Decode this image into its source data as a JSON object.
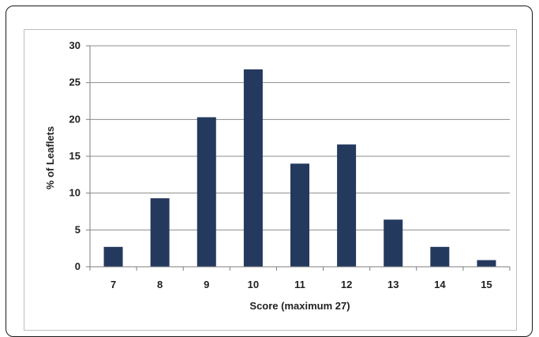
{
  "chart_data": {
    "type": "bar",
    "title": "",
    "xlabel": "Score (maximum 27)",
    "ylabel": "% of Leaflets",
    "categories": [
      "7",
      "8",
      "9",
      "10",
      "11",
      "12",
      "13",
      "14",
      "15"
    ],
    "values": [
      2.7,
      9.3,
      20.3,
      26.8,
      14.0,
      16.6,
      6.4,
      2.7,
      0.9
    ],
    "ylim": [
      0,
      30
    ],
    "yticks": [
      "0",
      "5",
      "10",
      "15",
      "20",
      "25",
      "30"
    ],
    "grid": true,
    "legend": "none",
    "colors": {
      "bar": "#24395e",
      "grid": "#8c8c8c",
      "axis": "#7f7f7f"
    }
  }
}
